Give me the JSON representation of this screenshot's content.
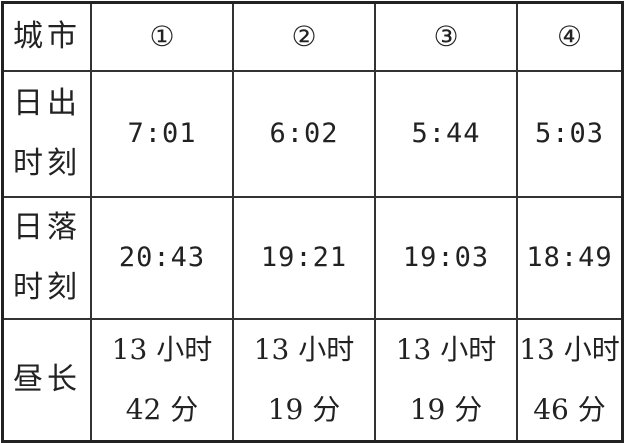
{
  "table": {
    "header": {
      "label": "城市",
      "cities": [
        "①",
        "②",
        "③",
        "④"
      ]
    },
    "rows": [
      {
        "label_lines": [
          "日出",
          "时刻"
        ],
        "values": [
          "7:01",
          "6:02",
          "5:44",
          "5:03"
        ]
      },
      {
        "label_lines": [
          "日落",
          "时刻"
        ],
        "values": [
          "20:43",
          "19:21",
          "19:03",
          "18:49"
        ]
      },
      {
        "label_lines": [
          "昼长"
        ],
        "values": [
          [
            "13 小时",
            "42 分"
          ],
          [
            "13 小时",
            "19 分"
          ],
          [
            "13 小时",
            "19 分"
          ],
          [
            "13 小时",
            "46 分"
          ]
        ]
      }
    ]
  }
}
